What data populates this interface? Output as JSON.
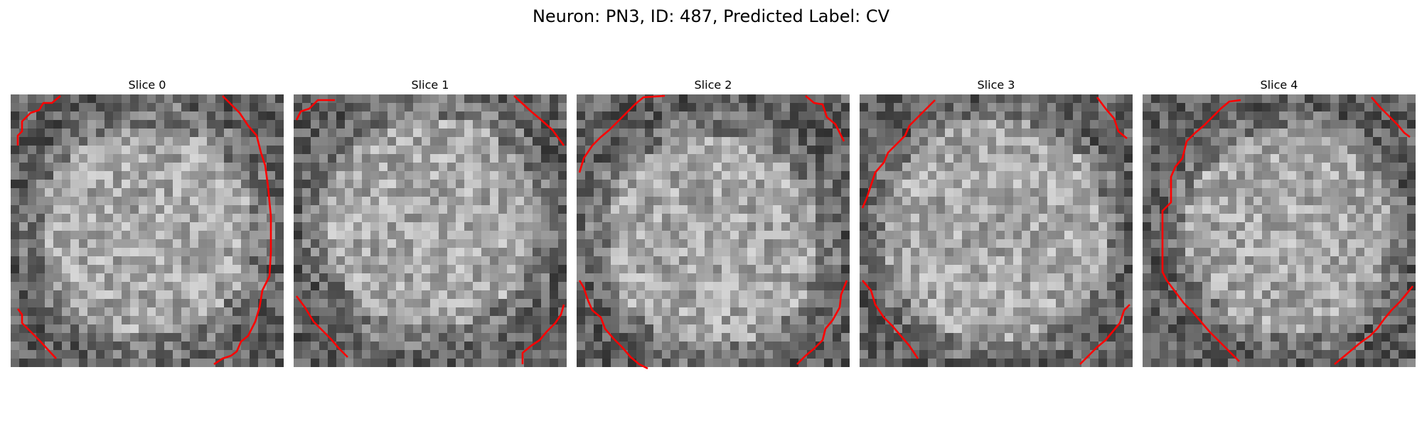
{
  "title": "Neuron: PN3, ID: 487, Predicted Label: CV",
  "contour_color": "#ff0000",
  "slices": [
    {
      "label": "Slice 0"
    },
    {
      "label": "Slice 1"
    },
    {
      "label": "Slice 2"
    },
    {
      "label": "Slice 3"
    },
    {
      "label": "Slice 4"
    }
  ]
}
